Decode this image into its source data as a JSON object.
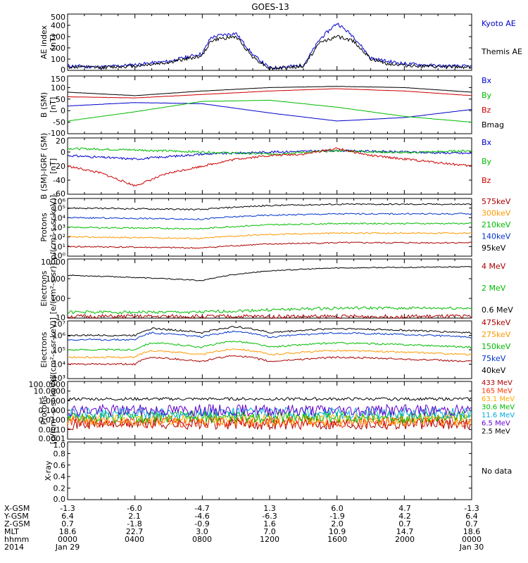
{
  "title": "GOES-13",
  "panels": [
    {
      "id": "ae",
      "ylabel": [
        "AE index",
        "[nT]"
      ],
      "ticks": [
        "0",
        "50",
        "100",
        "150",
        "200",
        "250",
        "300",
        "350",
        "400",
        "450",
        "500"
      ],
      "labeled_ticks": [
        "500",
        "400",
        "300",
        "200",
        "100",
        "0"
      ],
      "legend": [
        {
          "text": "Kyoto AE",
          "color": "#0000cc"
        },
        {
          "text": "Themis AE",
          "color": "#000000"
        }
      ]
    },
    {
      "id": "bsm",
      "ylabel": [
        "B (SM)",
        "[nT]"
      ],
      "labeled_ticks": [
        "150",
        "100",
        "50",
        "0",
        "-50",
        "-100"
      ],
      "legend": [
        {
          "text": "Bx",
          "color": "#0000cc"
        },
        {
          "text": "By",
          "color": "#00bb00"
        },
        {
          "text": "Bz",
          "color": "#cc0000"
        },
        {
          "text": "Bmag",
          "color": "#000000"
        }
      ]
    },
    {
      "id": "bigrf",
      "ylabel": [
        "B (SM)-IGRF (SM)",
        "[nT]"
      ],
      "labeled_ticks": [
        "20",
        "0",
        "-20",
        "-40",
        "-60"
      ],
      "legend": [
        {
          "text": "Bx",
          "color": "#0000cc"
        },
        {
          "text": "By",
          "color": "#00bb00"
        },
        {
          "text": "Bz",
          "color": "#cc0000"
        }
      ]
    },
    {
      "id": "protons_kev",
      "ylabel": [
        "Protons",
        "p/(cm²-s-sr-keV)]"
      ],
      "labeled_ticks": [
        "10⁶",
        "10⁵",
        "10⁴",
        "10³",
        "10²",
        "10¹",
        "10⁰"
      ],
      "legend": [
        {
          "text": "575keV",
          "color": "#aa0000"
        },
        {
          "text": "300keV",
          "color": "#ff9900"
        },
        {
          "text": "210keV",
          "color": "#00bb00"
        },
        {
          "text": "140keV",
          "color": "#0033cc"
        },
        {
          "text": "95keV",
          "color": "#000000"
        }
      ]
    },
    {
      "id": "electrons_mev",
      "ylabel": [
        "Electrons",
        "[e/(cm²-s-sr)]"
      ],
      "labeled_ticks": [
        "10000",
        "1000",
        "100",
        "10"
      ],
      "legend": [
        {
          "text": "4 MeV",
          "color": "#aa0000"
        },
        {
          "text": "2 MeV",
          "color": "#00bb00"
        },
        {
          "text": "0.6 MeV",
          "color": "#000000"
        }
      ]
    },
    {
      "id": "electrons_kev",
      "ylabel": [
        "Electrons",
        "e/(cm²-s-sr-keV)]"
      ],
      "labeled_ticks": [
        "10⁷",
        "10⁶",
        "10⁵",
        "10⁴",
        "10³"
      ],
      "legend": [
        {
          "text": "475keV",
          "color": "#aa0000"
        },
        {
          "text": "275keV",
          "color": "#ff9900"
        },
        {
          "text": "150keV",
          "color": "#00bb00"
        },
        {
          "text": "75keV",
          "color": "#0033cc"
        },
        {
          "text": "40keV",
          "color": "#000000"
        }
      ]
    },
    {
      "id": "protons_mev",
      "ylabel": [
        "Protons",
        "[p/(cm²-s-sr-keV)]"
      ],
      "labeled_ticks": [
        "100.0000",
        "10.0000",
        "1.0000",
        "0.1000",
        "0.0100",
        "0.0010",
        "0.0001"
      ],
      "legend": [
        {
          "text": "433 MeV",
          "color": "#aa0000"
        },
        {
          "text": "165 MeV",
          "color": "#ff3300"
        },
        {
          "text": "63.1 MeV",
          "color": "#ffaa00"
        },
        {
          "text": "30.6 MeV",
          "color": "#00bb00"
        },
        {
          "text": "11.6 MeV",
          "color": "#00aadd"
        },
        {
          "text": "6.5 MeV",
          "color": "#6600cc"
        },
        {
          "text": "2.5 MeV",
          "color": "#000000"
        }
      ]
    },
    {
      "id": "xray",
      "ylabel": [
        "X-ray"
      ],
      "labeled_ticks": [
        "1.0",
        "0.8",
        "0.6",
        "0.4",
        "0.2",
        "0.0"
      ],
      "legend": [
        {
          "text": "No data",
          "color": "#000000"
        }
      ]
    }
  ],
  "footer": {
    "rows": [
      {
        "label": "X-GSM",
        "values": [
          "-1.3",
          "-6.0",
          "-4.7",
          "1.3",
          "6.0",
          "4.7",
          "-1.3"
        ]
      },
      {
        "label": "Y-GSM",
        "values": [
          "6.4",
          "2.1",
          "-4.6",
          "-6.3",
          "-1.9",
          "4.2",
          "6.4"
        ]
      },
      {
        "label": "Z-GSM",
        "values": [
          "0.7",
          "-1.8",
          "-0.9",
          "1.6",
          "2.0",
          "0.7",
          "0.7"
        ]
      },
      {
        "label": "MLT",
        "values": [
          "18.6",
          "22.7",
          "3.0",
          "7.0",
          "10.9",
          "14.7",
          "18.6"
        ]
      },
      {
        "label": "hhmm",
        "values": [
          "0000",
          "0400",
          "0800",
          "1200",
          "1600",
          "2000",
          "0000"
        ]
      },
      {
        "label": "2014",
        "values": [
          "Jan 29",
          "",
          "",
          "",
          "",
          "",
          "Jan 30"
        ]
      }
    ]
  },
  "chart_data": {
    "type": "line",
    "title": "GOES-13",
    "x_ticks": [
      "0000",
      "0400",
      "0800",
      "1200",
      "1600",
      "2000",
      "0000"
    ],
    "x_dates": [
      "Jan 29",
      "Jan 30"
    ],
    "panels": [
      {
        "ylabel": "AE index [nT]",
        "ylim": [
          0,
          500
        ],
        "series": [
          {
            "name": "Kyoto AE",
            "x_hours": [
              0,
              2,
              4,
              6,
              8,
              8.5,
              9,
              10,
              11,
              12,
              14,
              15,
              16,
              17,
              18,
              19,
              20,
              22,
              24
            ],
            "values": [
              40,
              30,
              50,
              80,
              150,
              290,
              310,
              330,
              140,
              20,
              45,
              280,
              420,
              300,
              110,
              80,
              60,
              40,
              35
            ]
          },
          {
            "name": "Themis AE",
            "x_hours": [
              0,
              2,
              4,
              6,
              8,
              8.5,
              9,
              10,
              11,
              12,
              14,
              15,
              16,
              17,
              18,
              19,
              20,
              22,
              24
            ],
            "values": [
              30,
              25,
              40,
              70,
              130,
              260,
              280,
              300,
              120,
              15,
              35,
              250,
              300,
              260,
              100,
              60,
              45,
              30,
              30
            ]
          }
        ]
      },
      {
        "ylabel": "B (SM) [nT]",
        "ylim": [
          -100,
          150
        ],
        "series": [
          {
            "name": "Bx",
            "x_hours": [
              0,
              4,
              8,
              12,
              16,
              20,
              24
            ],
            "values": [
              20,
              35,
              30,
              -10,
              -45,
              -30,
              5
            ]
          },
          {
            "name": "By",
            "x_hours": [
              0,
              4,
              8,
              12,
              16,
              20,
              24
            ],
            "values": [
              -45,
              -5,
              40,
              45,
              15,
              -25,
              -50
            ]
          },
          {
            "name": "Bz",
            "x_hours": [
              0,
              4,
              8,
              12,
              16,
              20,
              24
            ],
            "values": [
              60,
              55,
              70,
              85,
              95,
              85,
              65
            ]
          },
          {
            "name": "Bmag",
            "x_hours": [
              0,
              4,
              8,
              12,
              16,
              20,
              24
            ],
            "values": [
              80,
              65,
              85,
              100,
              105,
              100,
              80
            ]
          }
        ]
      },
      {
        "ylabel": "B (SM)-IGRF (SM) [nT]",
        "ylim": [
          -60,
          20
        ],
        "series": [
          {
            "name": "Bx",
            "x_hours": [
              0,
              4,
              8,
              12,
              16,
              20,
              24
            ],
            "values": [
              -5,
              -10,
              -3,
              0,
              2,
              0,
              -2
            ]
          },
          {
            "name": "By",
            "x_hours": [
              0,
              4,
              8,
              12,
              16,
              20,
              24
            ],
            "values": [
              5,
              3,
              0,
              -3,
              2,
              -1,
              2
            ]
          },
          {
            "name": "Bz",
            "x_hours": [
              0,
              2,
              4,
              6,
              8,
              10,
              12,
              14,
              16,
              18,
              20,
              24
            ],
            "values": [
              -20,
              -30,
              -48,
              -30,
              -20,
              -10,
              -5,
              -3,
              5,
              -5,
              -10,
              -20
            ]
          }
        ]
      },
      {
        "ylabel": "Protons p/(cm²-s-sr-keV)",
        "ylim": [
          "1e0",
          "1e6"
        ],
        "series": [
          {
            "name": "575keV",
            "value_approx": "1e1"
          },
          {
            "name": "300keV",
            "value_approx": "1e2"
          },
          {
            "name": "210keV",
            "value_approx": "1e3"
          },
          {
            "name": "140keV",
            "value_approx": "1e4"
          },
          {
            "name": "95keV",
            "value_approx": "1e5"
          }
        ]
      },
      {
        "ylabel": "Electrons [e/(cm²-s-sr)]",
        "ylim": [
          10,
          10000
        ],
        "series": [
          {
            "name": "4 MeV",
            "value_approx": 12
          },
          {
            "name": "2 MeV",
            "value_approx": 20
          },
          {
            "name": "0.6 MeV",
            "x_hours": [
              0,
              8,
              12,
              16,
              24
            ],
            "values": [
              1500,
              800,
              2500,
              3500,
              4000
            ]
          }
        ]
      },
      {
        "ylabel": "Electrons e/(cm²-s-sr-keV)",
        "ylim": [
          "1e3",
          "1e7"
        ],
        "series": [
          {
            "name": "475keV",
            "value_approx": "1e4"
          },
          {
            "name": "275keV",
            "value_approx": "3e4"
          },
          {
            "name": "150keV",
            "value_approx": "1e5"
          },
          {
            "name": "75keV",
            "value_approx": "5e5"
          },
          {
            "name": "40keV",
            "value_approx": "1e6"
          }
        ]
      },
      {
        "ylabel": "Protons [p/(cm²-s-sr-keV)]",
        "ylim": [
          0.0001,
          100
        ],
        "series": [
          {
            "name": "433 MeV",
            "value_approx": 0.004
          },
          {
            "name": "165 MeV",
            "value_approx": 0.006
          },
          {
            "name": "63.1 MeV",
            "value_approx": 0.01
          },
          {
            "name": "30.6 MeV",
            "value_approx": 0.02
          },
          {
            "name": "11.6 MeV",
            "value_approx": 0.05
          },
          {
            "name": "6.5 MeV",
            "value_approx": 0.1
          },
          {
            "name": "2.5 MeV",
            "value_approx": 1.5
          }
        ]
      },
      {
        "ylabel": "X-ray",
        "ylim": [
          0,
          1
        ],
        "series": []
      }
    ]
  }
}
